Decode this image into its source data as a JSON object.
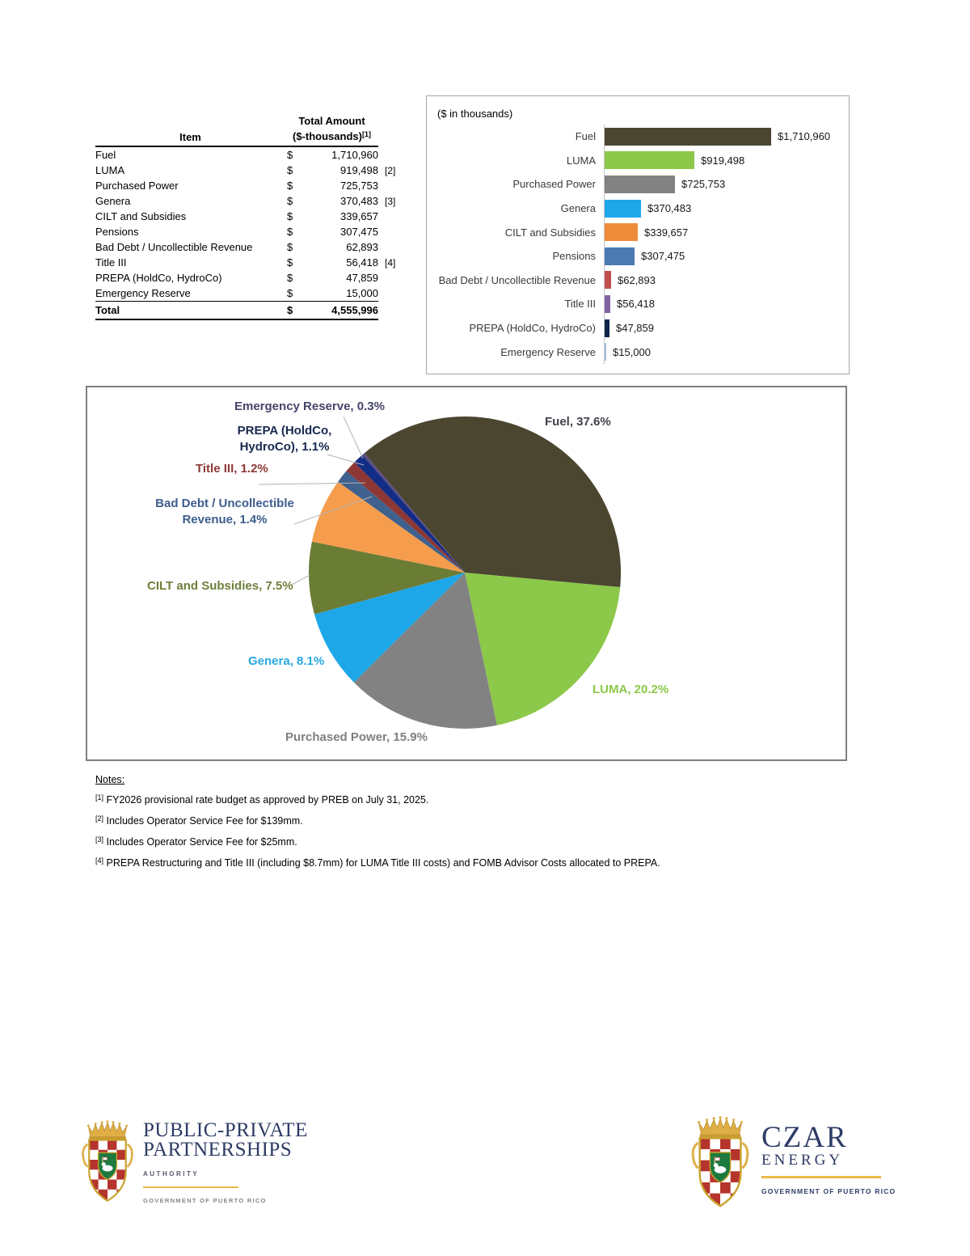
{
  "table": {
    "item_header": "Item",
    "amount_header_line1": "Total Amount",
    "amount_header_line2": "($-thousands)",
    "amount_header_ref": "[1]",
    "currency": "$",
    "rows": [
      {
        "item": "Fuel",
        "amount": "1,710,960",
        "ref": ""
      },
      {
        "item": "LUMA",
        "amount": "919,498",
        "ref": "[2]"
      },
      {
        "item": "Purchased Power",
        "amount": "725,753",
        "ref": ""
      },
      {
        "item": "Genera",
        "amount": "370,483",
        "ref": "[3]"
      },
      {
        "item": "CILT and Subsidies",
        "amount": "339,657",
        "ref": ""
      },
      {
        "item": "Pensions",
        "amount": "307,475",
        "ref": ""
      },
      {
        "item": "Bad Debt / Uncollectible Revenue",
        "amount": "62,893",
        "ref": ""
      },
      {
        "item": "Title III",
        "amount": "56,418",
        "ref": "[4]"
      },
      {
        "item": "PREPA (HoldCo, HydroCo)",
        "amount": "47,859",
        "ref": ""
      },
      {
        "item": "Emergency Reserve",
        "amount": "15,000",
        "ref": ""
      }
    ],
    "total_label": "Total",
    "total_amount": "4,555,996"
  },
  "chart_data": [
    {
      "type": "bar",
      "orientation": "horizontal",
      "title": "($ in thousands)",
      "grid": false,
      "legend": false,
      "categories": [
        "Fuel",
        "LUMA",
        "Purchased Power",
        "Genera",
        "CILT and Subsidies",
        "Pensions",
        "Bad Debt / Uncollectible Revenue",
        "Title III",
        "PREPA (HoldCo, HydroCo)",
        "Emergency Reserve"
      ],
      "values": [
        1710960,
        919498,
        725753,
        370483,
        339657,
        307475,
        62893,
        56418,
        47859,
        15000
      ],
      "value_labels": [
        "$1,710,960",
        "$919,498",
        "$725,753",
        "$370,483",
        "$339,657",
        "$307,475",
        "$62,893",
        "$56,418",
        "$47,859",
        "$15,000"
      ],
      "colors": [
        "#4a4630",
        "#8cc849",
        "#828282",
        "#1ea7e8",
        "#ef8c3c",
        "#4d79b3",
        "#c0504d",
        "#8064a2",
        "#102448",
        "#a8c0dc"
      ],
      "xlim": [
        0,
        1710960
      ]
    },
    {
      "type": "pie",
      "start_angle_deg": -40,
      "direction": "clockwise",
      "slices": [
        {
          "name": "Fuel",
          "pct": 37.6,
          "label_lines": [
            "Fuel, 37.6%"
          ],
          "color": "#4a4630",
          "label_color": "#3f434b"
        },
        {
          "name": "LUMA",
          "pct": 20.2,
          "label_lines": [
            "LUMA, 20.2%"
          ],
          "color": "#8cc849",
          "label_color": "#8cc849"
        },
        {
          "name": "Purchased Power",
          "pct": 15.9,
          "label_lines": [
            "Purchased Power, 15.9%"
          ],
          "color": "#828282",
          "label_color": "#7f7f7f"
        },
        {
          "name": "Genera",
          "pct": 8.1,
          "label_lines": [
            "Genera, 8.1%"
          ],
          "color": "#1ea7e8",
          "label_color": "#29a8e0"
        },
        {
          "name": "CILT and Subsidies",
          "pct": 7.5,
          "label_lines": [
            "CILT and Subsidies, 7.5%"
          ],
          "color": "#6b7c35",
          "label_color": "#6e7f3c"
        },
        {
          "name": "Pensions",
          "pct": 6.7,
          "label_lines": [],
          "color": "#f59d4d",
          "label_color": ""
        },
        {
          "name": "Bad Debt / Uncollectible Revenue",
          "pct": 1.4,
          "label_lines": [
            "Bad Debt / Uncollectible",
            "Revenue, 1.4%"
          ],
          "color": "#40618e",
          "label_color": "#3d5d8c"
        },
        {
          "name": "Title III",
          "pct": 1.2,
          "label_lines": [
            "Title III, 1.2%"
          ],
          "color": "#8e3734",
          "label_color": "#8e3a38"
        },
        {
          "name": "PREPA (HoldCo, HydroCo)",
          "pct": 1.1,
          "label_lines": [
            "PREPA (HoldCo,",
            "HydroCo), 1.1%"
          ],
          "color": "#122d85",
          "label_color": "#17294f"
        },
        {
          "name": "Emergency Reserve",
          "pct": 0.3,
          "label_lines": [
            "Emergency Reserve, 0.3%"
          ],
          "color": "#5c4d82",
          "label_color": "#45456a"
        }
      ]
    }
  ],
  "notes": {
    "heading": "Notes:",
    "items": [
      {
        "ref": "[1]",
        "text": "FY2026 provisional rate budget as approved by PREB on July 31, 2025."
      },
      {
        "ref": "[2]",
        "text": "Includes Operator Service Fee for $139mm."
      },
      {
        "ref": "[3]",
        "text": "Includes Operator Service Fee for $25mm."
      },
      {
        "ref": "[4]",
        "text": "PREPA Restructuring and Title III (including $8.7mm) for LUMA Title III costs) and FOMB Advisor Costs allocated to PREPA."
      }
    ]
  },
  "logos": {
    "left": {
      "title_line1": "PUBLIC-PRIVATE",
      "title_line2": "PARTNERSHIPS",
      "subtitle": "AUTHORITY",
      "government": "GOVERNMENT OF PUERTO RICO"
    },
    "right": {
      "title_line1": "CZAR",
      "title_line2": "ENERGY",
      "government": "GOVERNMENT OF PUERTO RICO"
    }
  },
  "colors": {
    "gold": "#e9b949",
    "navy": "#2e3b66",
    "crest_red": "#b5342c",
    "crest_green": "#1d7a3e",
    "bar_box_border": "#a6a6a6",
    "pie_box_border": "#808080",
    "leader_line": "#b3b3b3"
  }
}
